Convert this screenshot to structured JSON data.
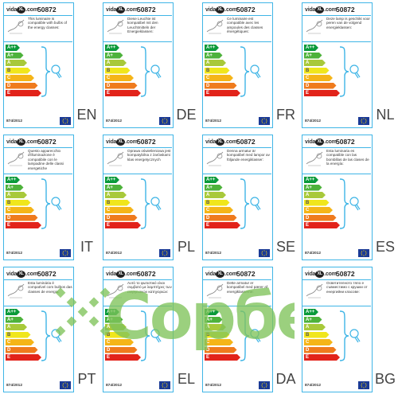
{
  "brand": {
    "name": "vidaXL.com",
    "prefix": "vida",
    "xl": "XL",
    "suffix": ".com"
  },
  "model": "50872",
  "regulation": "874/2012",
  "energy_classes": [
    {
      "label": "A++",
      "color": "#0a9a3a"
    },
    {
      "label": "A+",
      "color": "#4db23b"
    },
    {
      "label": "A",
      "color": "#a8c93a"
    },
    {
      "label": "B",
      "color": "#f0e61c"
    },
    {
      "label": "C",
      "color": "#f5b518"
    },
    {
      "label": "D",
      "color": "#ef7b1d"
    },
    {
      "label": "E",
      "color": "#e2231a"
    }
  ],
  "colors": {
    "border": "#3fb5e6",
    "eu_flag": "#1a3a96",
    "watermark": "#7fc35b"
  },
  "labels": [
    {
      "lang": "EN",
      "text": "This luminaire is compatible with bulbs of the energy classes:"
    },
    {
      "lang": "DE",
      "text": "Diese Leuchte ist kompatibel mit den Leuchtmitteln der Energieklassen:"
    },
    {
      "lang": "FR",
      "text": "Ce luminaire est compatible avec les ampoules des classes énergétiques:"
    },
    {
      "lang": "NL",
      "text": "Deze lamp is geschikt voor peren van de volgend energieklassen:"
    },
    {
      "lang": "IT",
      "text": "Questo apparecchio d'illuminazione è compatibile con le lampadine delle classi energetiche"
    },
    {
      "lang": "PL",
      "text": "Oprawa oświetleniowa jest kompatybilna z żarówkami klas energetycznych"
    },
    {
      "lang": "SE",
      "text": "Denna armatur är kompatibel med lampor av följande energiklasser:"
    },
    {
      "lang": "ES",
      "text": "Esta luminaria es compatible con las bombillas de las clases de la energía:"
    },
    {
      "lang": "PT",
      "text": "Esta luminária é compatível com bulbos das classes de energia:"
    },
    {
      "lang": "EL",
      "text": "Αυτό το φωτιστικό είναι συμβατό με λαμπτήρες των ενεργειακών κατηγοριών:"
    },
    {
      "lang": "DA",
      "text": "Dette armatur er kompatibel med pærer af energiklasserne:"
    },
    {
      "lang": "BG",
      "text": "Осветителното тяло е съвместимо с крушки от енергийни класове:"
    }
  ],
  "watermark_text": "Сорбе"
}
